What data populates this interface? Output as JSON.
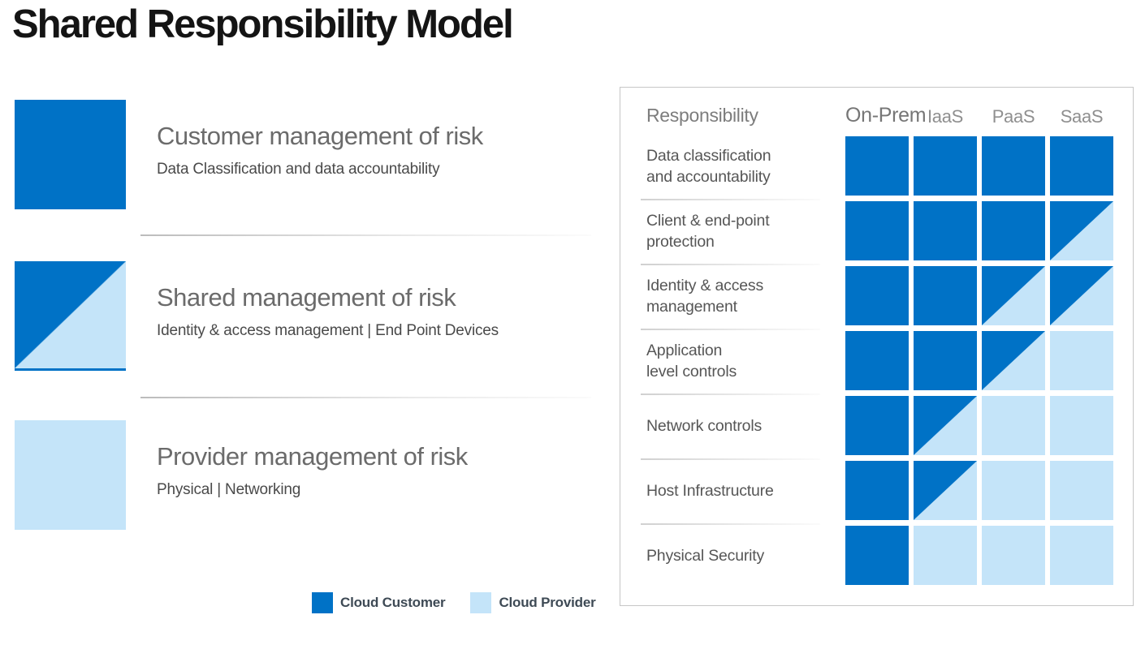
{
  "title": "Shared Responsibility Model",
  "colors": {
    "customer_blue": "#0072C6",
    "provider_light_blue": "#C4E4F9"
  },
  "legend": {
    "items": [
      {
        "key": "customer",
        "heading": "Customer management of risk",
        "sub": "Data Classification and data accountability"
      },
      {
        "key": "shared",
        "heading": "Shared management of risk",
        "sub": "Identity & access management | End Point Devices"
      },
      {
        "key": "provider",
        "heading": "Provider management of risk",
        "sub": "Physical | Networking"
      }
    ],
    "footer": [
      {
        "key": "customer",
        "label": "Cloud Customer"
      },
      {
        "key": "provider",
        "label": "Cloud Provider"
      }
    ]
  },
  "matrix": {
    "corner_label": "Responsibility",
    "columns": [
      "On-Prem",
      "IaaS",
      "PaaS",
      "SaaS"
    ],
    "legend_meaning": {
      "customer": "Cloud Customer",
      "provider": "Cloud Provider",
      "shared": "Shared"
    },
    "rows": [
      {
        "label": "Data classification and accountability",
        "label_lines": [
          "Data classification",
          "and accountability"
        ],
        "cells": [
          "customer",
          "customer",
          "customer",
          "customer"
        ]
      },
      {
        "label": "Client & end-point protection",
        "label_lines": [
          "Client & end-point",
          "protection"
        ],
        "cells": [
          "customer",
          "customer",
          "customer",
          "shared"
        ]
      },
      {
        "label": "Identity & access management",
        "label_lines": [
          "Identity & access",
          "management"
        ],
        "cells": [
          "customer",
          "customer",
          "shared",
          "shared"
        ]
      },
      {
        "label": "Application level controls",
        "label_lines": [
          "Application",
          "level controls"
        ],
        "cells": [
          "customer",
          "customer",
          "shared",
          "provider"
        ]
      },
      {
        "label": "Network controls",
        "label_lines": [
          "Network controls"
        ],
        "cells": [
          "customer",
          "shared",
          "provider",
          "provider"
        ]
      },
      {
        "label": "Host Infrastructure",
        "label_lines": [
          "Host Infrastructure"
        ],
        "cells": [
          "customer",
          "shared",
          "provider",
          "provider"
        ]
      },
      {
        "label": "Physical Security",
        "label_lines": [
          "Physical Security"
        ],
        "cells": [
          "customer",
          "provider",
          "provider",
          "provider"
        ]
      }
    ]
  }
}
